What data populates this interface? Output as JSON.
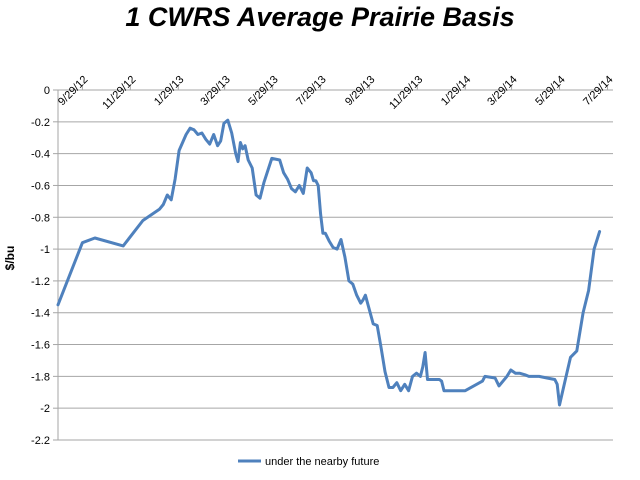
{
  "chart_data": {
    "type": "line",
    "title": "1 CWRS Average Prairie Basis",
    "xlabel": "",
    "ylabel": "$/bu",
    "ylim": [
      -2.2,
      0
    ],
    "yticks": [
      "0",
      "-0.2",
      "-0.4",
      "-0.6",
      "-0.8",
      "-1",
      "-1.2",
      "-1.4",
      "-1.6",
      "-1.8",
      "-2",
      "-2.2"
    ],
    "xticks": [
      "9/29/12",
      "11/29/12",
      "1/29/13",
      "3/29/13",
      "5/29/13",
      "7/29/13",
      "9/29/13",
      "11/29/13",
      "1/29/14",
      "3/29/14",
      "5/29/14",
      "7/29/14"
    ],
    "grid": "horizontal",
    "legend": "bottom",
    "series_color": "#4f81bd",
    "series": [
      {
        "name": "under the nearby future",
        "x": [
          "2012-08-29",
          "2012-09-29",
          "2012-10-15",
          "2012-11-20",
          "2012-12-15",
          "2013-01-05",
          "2013-01-10",
          "2013-01-15",
          "2013-01-20",
          "2013-01-25",
          "2013-01-30",
          "2013-02-08",
          "2013-02-13",
          "2013-02-18",
          "2013-02-23",
          "2013-02-28",
          "2013-03-05",
          "2013-03-10",
          "2013-03-15",
          "2013-03-20",
          "2013-03-24",
          "2013-03-28",
          "2013-04-02",
          "2013-04-07",
          "2013-04-12",
          "2013-04-15",
          "2013-04-18",
          "2013-04-21",
          "2013-04-24",
          "2013-04-28",
          "2013-05-03",
          "2013-05-08",
          "2013-05-13",
          "2013-05-18",
          "2013-05-28",
          "2013-06-07",
          "2013-06-12",
          "2013-06-17",
          "2013-06-22",
          "2013-06-27",
          "2013-07-02",
          "2013-07-07",
          "2013-07-12",
          "2013-07-17",
          "2013-07-20",
          "2013-07-23",
          "2013-07-26",
          "2013-07-29",
          "2013-08-01",
          "2013-08-04",
          "2013-08-09",
          "2013-08-14",
          "2013-08-19",
          "2013-08-24",
          "2013-08-29",
          "2013-09-03",
          "2013-09-08",
          "2013-09-13",
          "2013-09-18",
          "2013-09-21",
          "2013-09-24",
          "2013-09-29",
          "2013-10-04",
          "2013-10-09",
          "2013-10-14",
          "2013-10-19",
          "2013-10-24",
          "2013-10-29",
          "2013-11-03",
          "2013-11-08",
          "2013-11-13",
          "2013-11-18",
          "2013-11-23",
          "2013-11-28",
          "2013-12-03",
          "2013-12-06",
          "2013-12-09",
          "2013-12-12",
          "2013-12-16",
          "2013-12-20",
          "2013-12-24",
          "2013-12-27",
          "2013-12-30",
          "2014-01-02",
          "2014-01-09",
          "2014-01-29",
          "2014-02-20",
          "2014-02-23",
          "2014-03-08",
          "2014-03-13",
          "2014-03-23",
          "2014-03-28",
          "2014-04-03",
          "2014-04-08",
          "2014-04-15",
          "2014-04-20",
          "2014-05-03",
          "2014-05-13",
          "2014-05-23",
          "2014-05-26",
          "2014-05-29",
          "2014-06-05",
          "2014-06-12",
          "2014-06-20",
          "2014-06-28",
          "2014-07-05",
          "2014-07-12",
          "2014-07-19"
        ],
        "y": [
          -1.35,
          -0.96,
          -0.93,
          -0.98,
          -0.82,
          -0.75,
          -0.72,
          -0.66,
          -0.69,
          -0.56,
          -0.38,
          -0.28,
          -0.24,
          -0.25,
          -0.28,
          -0.27,
          -0.31,
          -0.34,
          -0.28,
          -0.35,
          -0.32,
          -0.21,
          -0.19,
          -0.27,
          -0.4,
          -0.45,
          -0.33,
          -0.37,
          -0.35,
          -0.44,
          -0.49,
          -0.66,
          -0.68,
          -0.58,
          -0.43,
          -0.44,
          -0.52,
          -0.56,
          -0.62,
          -0.64,
          -0.6,
          -0.65,
          -0.49,
          -0.52,
          -0.57,
          -0.57,
          -0.6,
          -0.78,
          -0.9,
          -0.9,
          -0.95,
          -0.99,
          -1.0,
          -0.94,
          -1.05,
          -1.2,
          -1.22,
          -1.29,
          -1.34,
          -1.32,
          -1.29,
          -1.38,
          -1.47,
          -1.48,
          -1.62,
          -1.77,
          -1.87,
          -1.87,
          -1.84,
          -1.89,
          -1.85,
          -1.89,
          -1.8,
          -1.78,
          -1.8,
          -1.74,
          -1.65,
          -1.82,
          -1.82,
          -1.82,
          -1.82,
          -1.82,
          -1.83,
          -1.89,
          -1.89,
          -1.89,
          -1.83,
          -1.8,
          -1.81,
          -1.86,
          -1.8,
          -1.76,
          -1.78,
          -1.78,
          -1.79,
          -1.8,
          -1.8,
          -1.81,
          -1.82,
          -1.85,
          -1.98,
          -1.83,
          -1.68,
          -1.64,
          -1.4,
          -1.26,
          -1.0,
          -0.89
        ]
      }
    ]
  }
}
